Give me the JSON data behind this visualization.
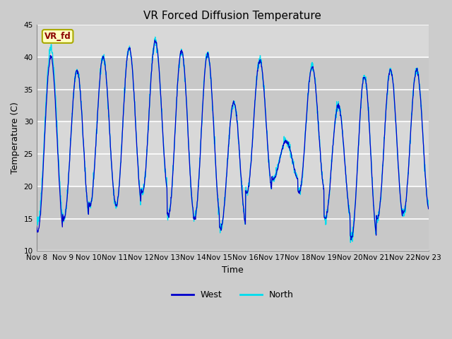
{
  "title": "VR Forced Diffusion Temperature",
  "xlabel": "Time",
  "ylabel": "Temperature (C)",
  "ylim": [
    10,
    45
  ],
  "x_tick_labels": [
    "Nov 8",
    "Nov 9",
    "Nov 10",
    "Nov 11",
    "Nov 12",
    "Nov 13",
    "Nov 14",
    "Nov 15",
    "Nov 16",
    "Nov 17",
    "Nov 18",
    "Nov 19",
    "Nov 20",
    "Nov 21",
    "Nov 22",
    "Nov 23"
  ],
  "yticks": [
    10,
    15,
    20,
    25,
    30,
    35,
    40,
    45
  ],
  "west_color": "#0000CC",
  "north_color": "#00DDEE",
  "annotation_text": "VR_fd",
  "annotation_bg": "#FFFFC0",
  "annotation_text_color": "#8B0000",
  "annotation_border_color": "#AAAA00",
  "grid_color": "#ffffff",
  "fig_bg_color": "#cccccc",
  "axes_bg_color": "#e0e0e0",
  "band_light_color": "#d8d8d8",
  "band_dark_color": "#c8c8c8",
  "title_fontsize": 11,
  "axis_label_fontsize": 9,
  "tick_fontsize": 7.5,
  "day_maxes": [
    40,
    38,
    40,
    41.5,
    42.5,
    41,
    40.5,
    33,
    39.5,
    27,
    38.5,
    32.5,
    37,
    38,
    38
  ],
  "day_mins": [
    13,
    15,
    17,
    17,
    19,
    15.5,
    15,
    13.5,
    19,
    21,
    19,
    15,
    12,
    15,
    16
  ]
}
